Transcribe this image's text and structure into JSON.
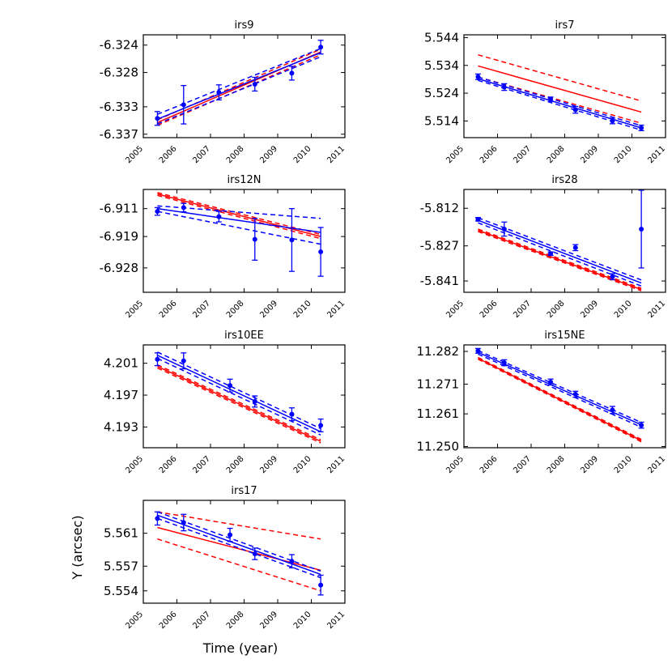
{
  "figure": {
    "ylabel": "Y (arcsec)",
    "xlabel": "Time (year)",
    "colors": {
      "data": "#0000ff",
      "fit_red": "#ff0000",
      "axis": "#000000"
    }
  },
  "chart_data": [
    {
      "type": "scatter",
      "title": "irs9",
      "xlim": [
        2005,
        2011
      ],
      "ylim": [
        -6.3375,
        -6.3225
      ],
      "xticks": [
        2005,
        2006,
        2007,
        2008,
        2009,
        2010,
        2011
      ],
      "yticks": [
        -6.324,
        -6.328,
        -6.333,
        -6.337
      ],
      "ytick_labels": [
        "-6.324",
        "-6.328",
        "-6.333",
        "-6.337"
      ],
      "points": [
        {
          "x": 2005.42,
          "y": -6.3347,
          "err": 0.001
        },
        {
          "x": 2006.2,
          "y": -6.3327,
          "err": 0.0028
        },
        {
          "x": 2007.25,
          "y": -6.3309,
          "err": 0.0011
        },
        {
          "x": 2008.32,
          "y": -6.3297,
          "err": 0.001
        },
        {
          "x": 2009.42,
          "y": -6.3281,
          "err": 0.001
        },
        {
          "x": 2010.28,
          "y": -6.3243,
          "err": 0.001
        }
      ],
      "blue_fit": {
        "x": [
          2005.42,
          2010.28
        ],
        "y": [
          -6.3348,
          -6.3251
        ],
        "band_start": 0.0007,
        "band_end": 0.0006
      },
      "red_fit": {
        "x": [
          2005.42,
          2010.28
        ],
        "y": [
          -6.3353,
          -6.325
        ],
        "band_start": 0.0004,
        "band_end": 0.0004
      }
    },
    {
      "type": "scatter",
      "title": "irs7",
      "xlim": [
        2005,
        2011
      ],
      "ylim": [
        5.508,
        5.545
      ],
      "xticks": [
        2005,
        2006,
        2007,
        2008,
        2009,
        2010,
        2011
      ],
      "yticks": [
        5.544,
        5.534,
        5.524,
        5.514
      ],
      "ytick_labels": [
        "5.544",
        "5.534",
        "5.524",
        "5.514"
      ],
      "points": [
        {
          "x": 2005.42,
          "y": 5.5299,
          "err": 0.001
        },
        {
          "x": 2006.2,
          "y": 5.5262,
          "err": 0.0012
        },
        {
          "x": 2007.58,
          "y": 5.5218,
          "err": 0.0008
        },
        {
          "x": 2008.32,
          "y": 5.518,
          "err": 0.0012
        },
        {
          "x": 2009.42,
          "y": 5.514,
          "err": 0.001
        },
        {
          "x": 2010.28,
          "y": 5.5115,
          "err": 0.001
        }
      ],
      "blue_fit": {
        "x": [
          2005.42,
          2010.28
        ],
        "y": [
          5.5292,
          5.5115
        ],
        "band_start": 0.0006,
        "band_end": 0.0008
      },
      "red_fit": {
        "x": [
          2005.42,
          2010.28
        ],
        "y": [
          5.5338,
          5.5172
        ],
        "band_start": 0.004,
        "band_end": 0.004
      }
    },
    {
      "type": "scatter",
      "title": "irs12N",
      "xlim": [
        2005,
        2011
      ],
      "ylim": [
        -6.935,
        -6.9055
      ],
      "xticks": [
        2005,
        2006,
        2007,
        2008,
        2009,
        2010,
        2011
      ],
      "yticks": [
        -6.911,
        -6.919,
        -6.928
      ],
      "ytick_labels": [
        "-6.911",
        "-6.919",
        "-6.928"
      ],
      "points": [
        {
          "x": 2005.42,
          "y": -6.9118,
          "err": 0.0011
        },
        {
          "x": 2006.2,
          "y": -6.9107,
          "err": 0.0012
        },
        {
          "x": 2007.25,
          "y": -6.9133,
          "err": 0.0015
        },
        {
          "x": 2008.32,
          "y": -6.9198,
          "err": 0.006
        },
        {
          "x": 2009.42,
          "y": -6.92,
          "err": 0.009
        },
        {
          "x": 2010.28,
          "y": -6.9234,
          "err": 0.007
        }
      ],
      "blue_fit": {
        "x": [
          2005.42,
          2010.28
        ],
        "y": [
          -6.911,
          -6.9178
        ],
        "band_start": [
          -6.9102,
          -6.9118
        ],
        "band_end": [
          -6.9138,
          -6.9212
        ]
      },
      "red_fit": {
        "x": [
          2005.42,
          2010.28
        ],
        "y": [
          -6.9068,
          -6.919
        ],
        "band_start": 0.0004,
        "band_end": 0.0006
      }
    },
    {
      "type": "scatter",
      "title": "irs28",
      "xlim": [
        2005,
        2011
      ],
      "ylim": [
        -5.8455,
        -5.8045
      ],
      "xticks": [
        2005,
        2006,
        2007,
        2008,
        2009,
        2010,
        2011
      ],
      "yticks": [
        -5.812,
        -5.827,
        -5.841
      ],
      "ytick_labels": [
        "-5.812",
        "-5.827",
        "-5.841"
      ],
      "points": [
        {
          "x": 2005.42,
          "y": -5.8164,
          "err": 0.0007
        },
        {
          "x": 2006.2,
          "y": -5.8203,
          "err": 0.0028
        },
        {
          "x": 2007.58,
          "y": -5.8301,
          "err": 0.0007
        },
        {
          "x": 2008.32,
          "y": -5.8277,
          "err": 0.0012
        },
        {
          "x": 2009.42,
          "y": -5.8393,
          "err": 0.0012
        },
        {
          "x": 2010.28,
          "y": -5.8203,
          "err": 0.0155
        }
      ],
      "blue_fit": {
        "x": [
          2005.42,
          2010.28
        ],
        "y": [
          -5.8168,
          -5.8418
        ],
        "band_start": 0.001,
        "band_end": 0.0012
      },
      "red_fit": {
        "x": [
          2005.42,
          2010.28
        ],
        "y": [
          -5.8208,
          -5.8444
        ],
        "band_start": 0.0005,
        "band_end": 0.0005
      }
    },
    {
      "type": "scatter",
      "title": "irs10EE",
      "xlim": [
        2005,
        2011
      ],
      "ylim": [
        4.1904,
        4.2033
      ],
      "xticks": [
        2005,
        2006,
        2007,
        2008,
        2009,
        2010,
        2011
      ],
      "yticks": [
        4.201,
        4.197,
        4.193
      ],
      "ytick_labels": [
        "4.201",
        "4.197",
        "4.193"
      ],
      "points": [
        {
          "x": 2005.42,
          "y": 4.2015,
          "err": 0.0008
        },
        {
          "x": 2006.2,
          "y": 4.2013,
          "err": 0.001
        },
        {
          "x": 2007.58,
          "y": 4.1982,
          "err": 0.0008
        },
        {
          "x": 2008.32,
          "y": 4.1962,
          "err": 0.0007
        },
        {
          "x": 2009.42,
          "y": 4.1946,
          "err": 0.0008
        },
        {
          "x": 2010.28,
          "y": 4.1932,
          "err": 0.0008
        }
      ],
      "blue_fit": {
        "x": [
          2005.42,
          2010.28
        ],
        "y": [
          4.202,
          4.1924
        ],
        "band_start": 0.0004,
        "band_end": 0.0004
      },
      "red_fit": {
        "x": [
          2005.42,
          2010.28
        ],
        "y": [
          4.2006,
          4.1912
        ],
        "band_start": 0.0002,
        "band_end": 0.0002
      }
    },
    {
      "type": "scatter",
      "title": "irs15NE",
      "xlim": [
        2005,
        2011
      ],
      "ylim": [
        11.2496,
        11.2842
      ],
      "xticks": [
        2005,
        2006,
        2007,
        2008,
        2009,
        2010,
        2011
      ],
      "yticks": [
        11.282,
        11.271,
        11.261,
        11.25
      ],
      "ytick_labels": [
        "11.282",
        "11.271",
        "11.261",
        "11.250"
      ],
      "points": [
        {
          "x": 2005.42,
          "y": 11.2822,
          "err": 0.0008
        },
        {
          "x": 2006.2,
          "y": 11.2782,
          "err": 0.001
        },
        {
          "x": 2007.58,
          "y": 11.2717,
          "err": 0.001
        },
        {
          "x": 2008.32,
          "y": 11.2676,
          "err": 0.001
        },
        {
          "x": 2009.42,
          "y": 11.2623,
          "err": 0.0012
        },
        {
          "x": 2010.28,
          "y": 11.2572,
          "err": 0.001
        }
      ],
      "blue_fit": {
        "x": [
          2005.42,
          2010.28
        ],
        "y": [
          11.2817,
          11.2573
        ],
        "band_start": 0.0006,
        "band_end": 0.0008
      },
      "red_fit": {
        "x": [
          2005.42,
          2010.28
        ],
        "y": [
          11.2797,
          11.252
        ],
        "band_start": 0.0003,
        "band_end": 0.0004
      }
    },
    {
      "type": "scatter",
      "title": "irs17",
      "xlim": [
        2005,
        2011
      ],
      "ylim": [
        5.5525,
        5.565
      ],
      "xticks": [
        2005,
        2006,
        2007,
        2008,
        2009,
        2010,
        2011
      ],
      "yticks": [
        5.561,
        5.557,
        5.554
      ],
      "ytick_labels": [
        "5.561",
        "5.557",
        "5.554"
      ],
      "points": [
        {
          "x": 2005.42,
          "y": 5.5628,
          "err": 0.0008
        },
        {
          "x": 2006.2,
          "y": 5.5623,
          "err": 0.001
        },
        {
          "x": 2007.58,
          "y": 5.5608,
          "err": 0.0008
        },
        {
          "x": 2008.32,
          "y": 5.5585,
          "err": 0.0007
        },
        {
          "x": 2009.42,
          "y": 5.5576,
          "err": 0.0008
        },
        {
          "x": 2010.28,
          "y": 5.5547,
          "err": 0.0012
        }
      ],
      "blue_fit": {
        "x": [
          2005.42,
          2010.28
        ],
        "y": [
          5.5632,
          5.556
        ],
        "band_start": 0.0004,
        "band_end": 0.0004
      },
      "red_fit": {
        "x": [
          2005.42,
          2010.28
        ],
        "y": [
          5.5617,
          5.5565
        ],
        "band_start": [
          5.5636,
          5.5603
        ],
        "band_end": [
          5.5603,
          5.554
        ]
      }
    }
  ]
}
